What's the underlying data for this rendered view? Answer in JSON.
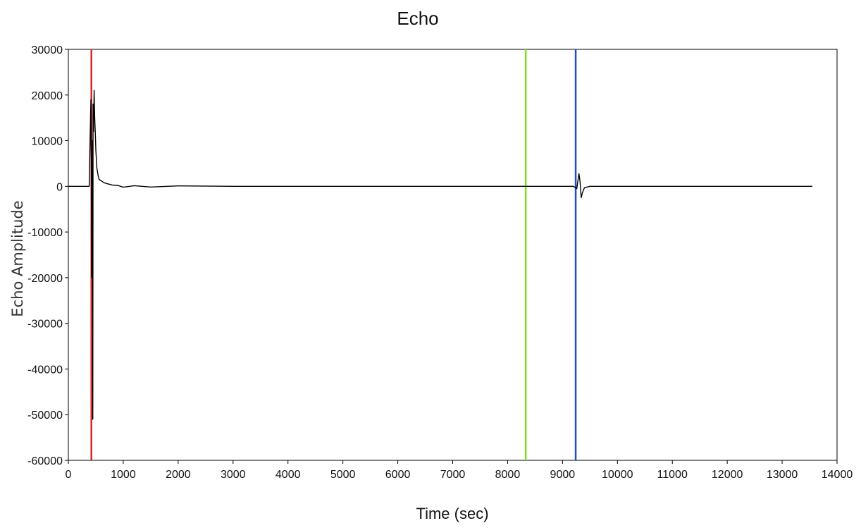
{
  "chart_data": {
    "type": "line",
    "title": "Echo",
    "xlabel": "Time (sec)",
    "ylabel": "Echo Amplitude",
    "xlim": [
      0,
      14000
    ],
    "ylim": [
      -60000,
      30000
    ],
    "x_ticks": [
      0,
      1000,
      2000,
      3000,
      4000,
      5000,
      6000,
      7000,
      8000,
      9000,
      10000,
      11000,
      12000,
      13000,
      14000
    ],
    "y_ticks": [
      30000,
      20000,
      10000,
      0,
      -10000,
      -20000,
      -30000,
      -40000,
      -50000,
      -60000
    ],
    "grid": false,
    "series": [
      {
        "color": "#000000",
        "x": [
          0,
          380,
          410,
          420,
          425,
          430,
          435,
          440,
          445,
          450,
          460,
          470,
          480,
          490,
          500,
          520,
          540,
          560,
          600,
          650,
          700,
          800,
          900,
          1000,
          1200,
          1500,
          2000,
          3000,
          4000,
          5000,
          6000,
          7000,
          8000,
          9000,
          9200,
          9260,
          9300,
          9320,
          9340,
          9360,
          9400,
          9500,
          9700,
          10000,
          11000,
          12000,
          13000,
          13550
        ],
        "y": [
          0,
          0,
          19000,
          2000,
          -20000,
          5000,
          -15000,
          10000,
          -51000,
          18000,
          12000,
          21000,
          15000,
          12000,
          8000,
          4000,
          2500,
          1500,
          1200,
          800,
          600,
          300,
          200,
          -200,
          150,
          -150,
          100,
          0,
          0,
          0,
          0,
          0,
          0,
          0,
          0,
          -500,
          2800,
          1000,
          -2500,
          -1500,
          -300,
          0,
          0,
          0,
          0,
          0,
          0,
          0
        ]
      }
    ],
    "cursors": [
      {
        "x": 420,
        "color": "#d62728"
      },
      {
        "x": 8330,
        "color": "#7fe020"
      },
      {
        "x": 9240,
        "color": "#1f4fc0"
      }
    ]
  }
}
